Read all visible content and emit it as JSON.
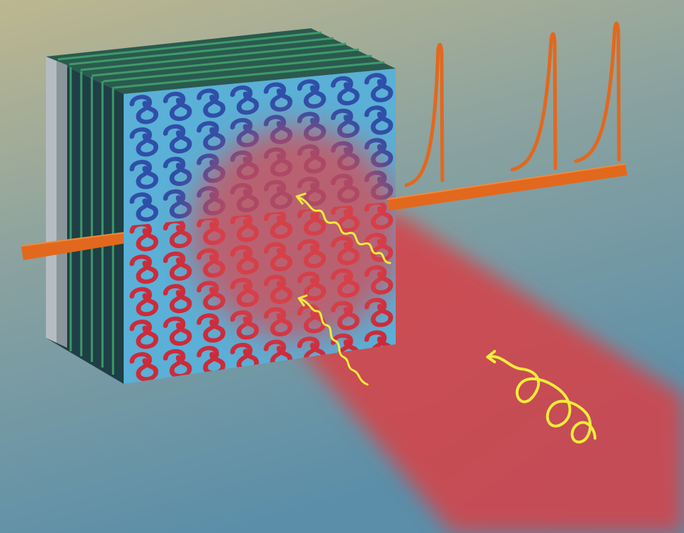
{
  "colors": {
    "background_top": "#b9b58f",
    "background_bottom": "#5c8ea8",
    "chip_face": "#5ab0d6",
    "chip_side": "#1d3f45",
    "chip_layer_edge": "#3e9a6a",
    "chip_left_gray": "#b5bcc2",
    "waveguide_blue": "#2f4fa8",
    "waveguide_red": "#cc2b3a",
    "fiber_orange": "#e2681e",
    "laser_beam": "#d24a4e",
    "photon_yellow": "#f4ec3a"
  },
  "icons": {
    "input_fiber": "orange-rod",
    "output_fiber": "orange-rod",
    "spectrum_peaks": "lorentzian-peaks",
    "photon_wave_packets": "yellow-squiggle-arrows",
    "spiral_photon": "yellow-helix-arrow"
  }
}
